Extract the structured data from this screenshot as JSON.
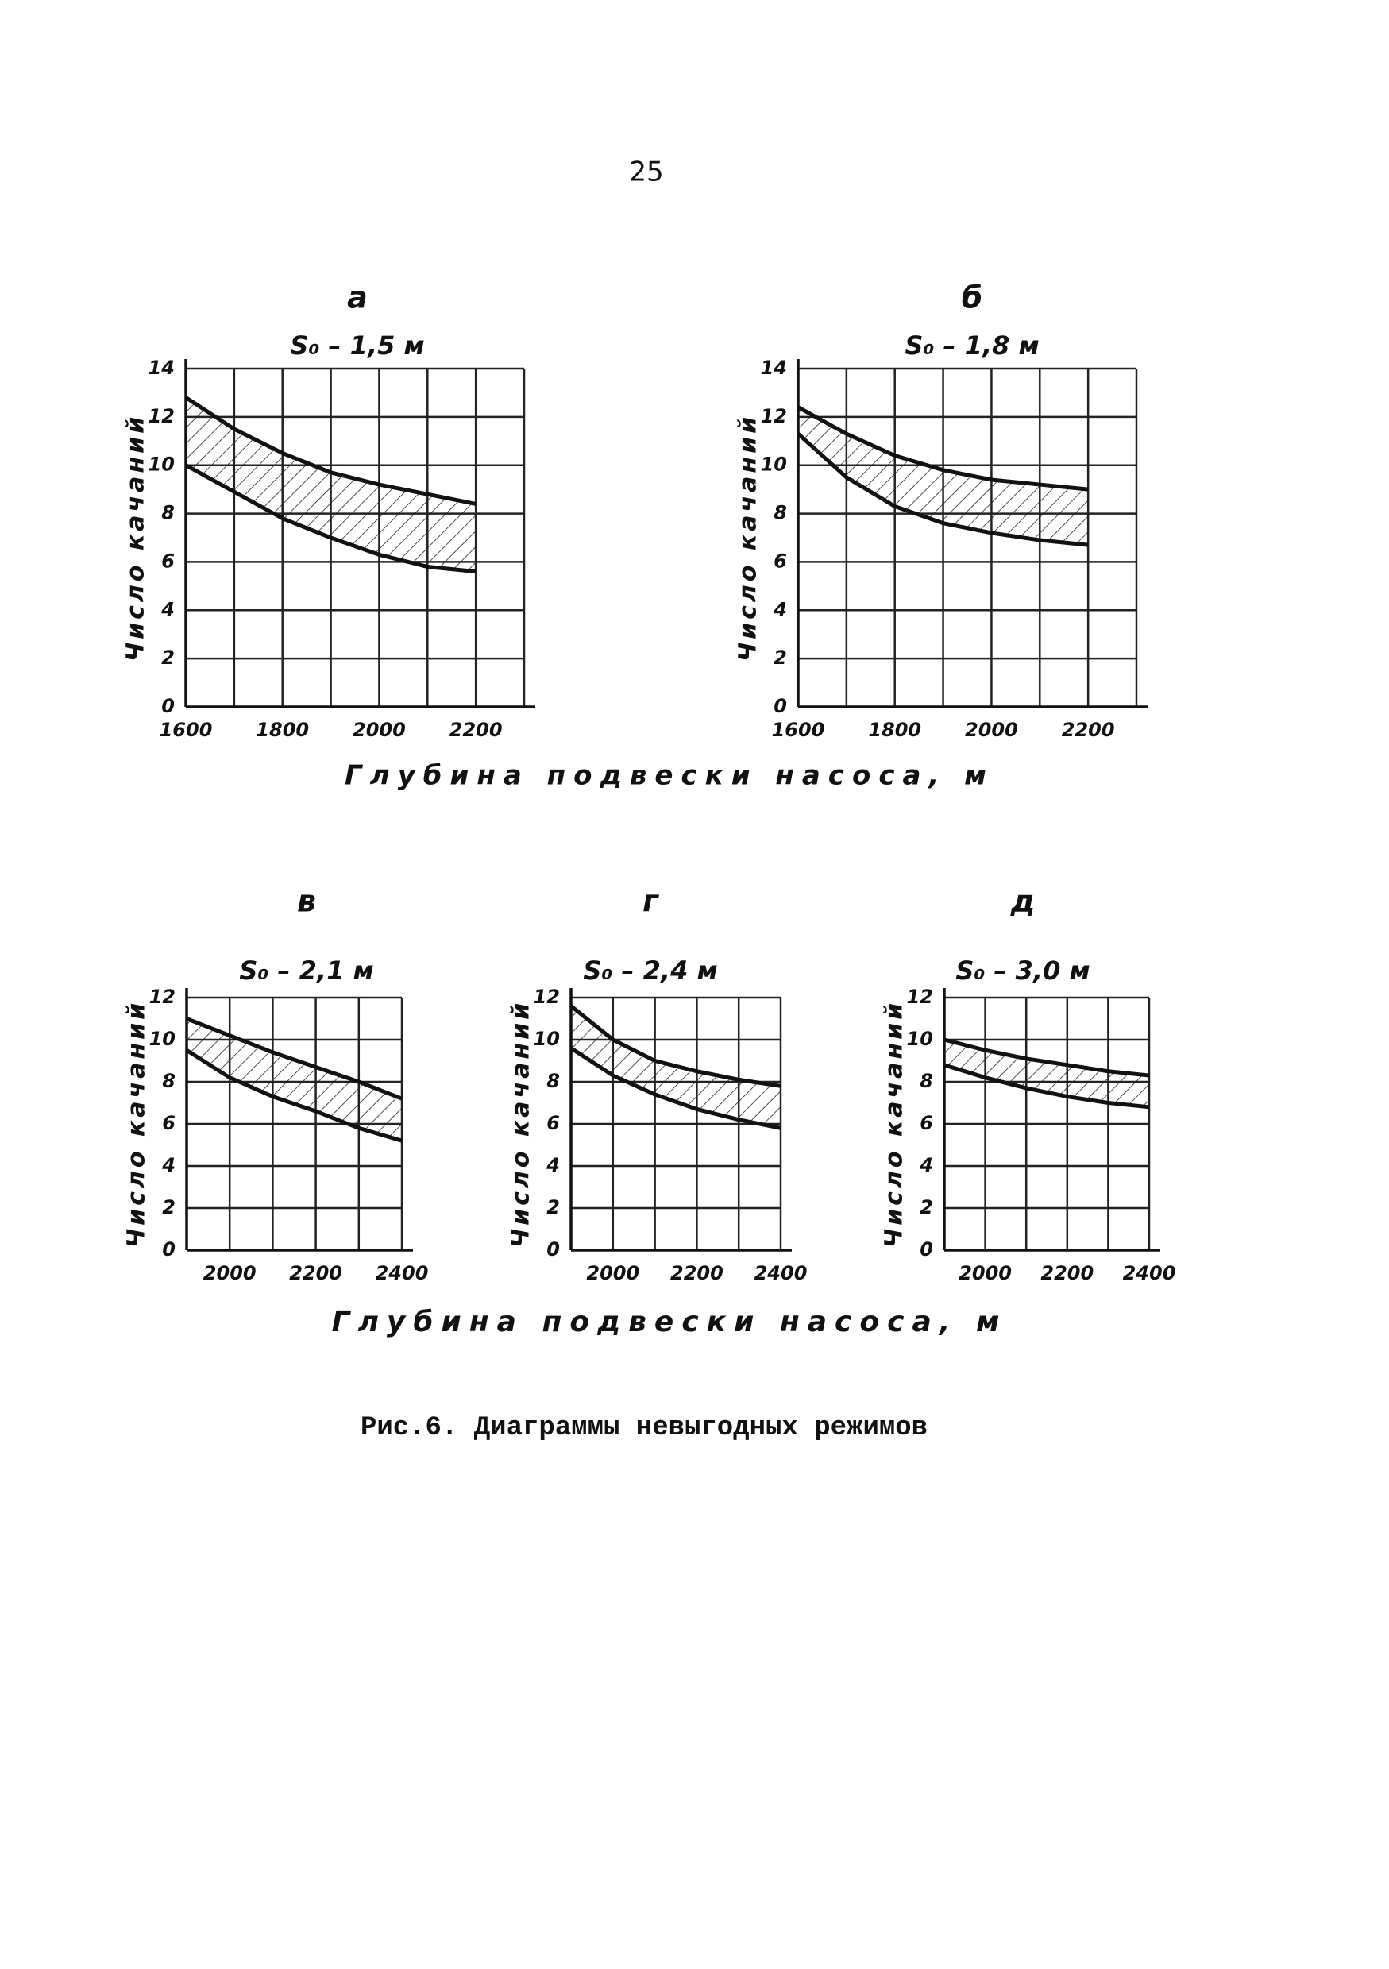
{
  "page_number": "25",
  "row_labels": [
    "Глубина подвески насоса, м",
    "Глубина подвески насоса, м"
  ],
  "caption": "Рис.6. Диаграммы невыгодных режимов",
  "chart_data": [
    {
      "type": "band",
      "label": "а",
      "title": "S₀ – 1,5 м",
      "ylabel": "Число качаний",
      "x": [
        1600,
        1700,
        1800,
        1900,
        2000,
        2100,
        2200
      ],
      "series": [
        {
          "values": [
            12.8,
            11.5,
            10.5,
            9.7,
            9.2,
            8.8,
            8.4
          ],
          "color": "#111"
        },
        {
          "values": [
            10,
            8.9,
            7.8,
            7.0,
            6.3,
            5.8,
            5.6
          ],
          "color": "#111"
        }
      ],
      "xlim": [
        1600,
        2300
      ],
      "xticks": [
        1600,
        1800,
        2000,
        2200
      ],
      "x_minor_ticks": [
        1700,
        1900,
        2100,
        2300
      ],
      "ylim": [
        0,
        14
      ],
      "yticks": [
        0,
        2,
        4,
        6,
        8,
        10,
        12,
        14
      ],
      "grid": true
    },
    {
      "type": "band",
      "label": "б",
      "title": "S₀ – 1,8 м",
      "ylabel": "Число качаний",
      "x": [
        1600,
        1700,
        1800,
        1900,
        2000,
        2100,
        2200
      ],
      "series": [
        {
          "values": [
            12.4,
            11.3,
            10.4,
            9.8,
            9.4,
            9.2,
            9.0
          ],
          "color": "#111"
        },
        {
          "values": [
            11.3,
            9.5,
            8.3,
            7.6,
            7.2,
            6.9,
            6.7
          ],
          "color": "#111"
        }
      ],
      "xlim": [
        1600,
        2300
      ],
      "xticks": [
        1600,
        1800,
        2000,
        2200
      ],
      "x_minor_ticks": [
        1700,
        1900,
        2100,
        2300
      ],
      "ylim": [
        0,
        14
      ],
      "yticks": [
        0,
        2,
        4,
        6,
        8,
        10,
        12,
        14
      ],
      "grid": true
    },
    {
      "type": "band",
      "label": "в",
      "title": "S₀ – 2,1 м",
      "ylabel": "Число качаний",
      "x": [
        1900,
        2000,
        2100,
        2200,
        2300,
        2400
      ],
      "series": [
        {
          "values": [
            11,
            10.2,
            9.4,
            8.7,
            8.0,
            7.2
          ],
          "color": "#111"
        },
        {
          "values": [
            9.5,
            8.2,
            7.3,
            6.6,
            5.8,
            5.2
          ],
          "color": "#111"
        }
      ],
      "xlim": [
        1900,
        2400
      ],
      "xticks": [
        2000,
        2200,
        2400
      ],
      "x_minor_ticks": [
        1900,
        2100,
        2300
      ],
      "ylim": [
        0,
        12
      ],
      "yticks": [
        0,
        2,
        4,
        6,
        8,
        10,
        12
      ],
      "grid": true
    },
    {
      "type": "band",
      "label": "г",
      "title": "S₀ – 2,4 м",
      "ylabel": "Число качаний",
      "x": [
        1900,
        2000,
        2100,
        2200,
        2300,
        2400
      ],
      "series": [
        {
          "values": [
            11.6,
            10.0,
            9.0,
            8.5,
            8.1,
            7.8
          ],
          "color": "#111"
        },
        {
          "values": [
            9.6,
            8.3,
            7.4,
            6.7,
            6.2,
            5.8
          ],
          "color": "#111"
        }
      ],
      "xlim": [
        1900,
        2400
      ],
      "xticks": [
        2000,
        2200,
        2400
      ],
      "x_minor_ticks": [
        1900,
        2100,
        2300
      ],
      "ylim": [
        0,
        12
      ],
      "yticks": [
        0,
        2,
        4,
        6,
        8,
        10,
        12
      ],
      "grid": true
    },
    {
      "type": "band",
      "label": "д",
      "title": "S₀ – 3,0 м",
      "ylabel": "Число качаний",
      "x": [
        1900,
        2000,
        2100,
        2200,
        2300,
        2400
      ],
      "series": [
        {
          "values": [
            10.0,
            9.5,
            9.1,
            8.8,
            8.5,
            8.3
          ],
          "color": "#111"
        },
        {
          "values": [
            8.8,
            8.2,
            7.7,
            7.3,
            7.0,
            6.8
          ],
          "color": "#111"
        }
      ],
      "xlim": [
        1900,
        2400
      ],
      "xticks": [
        2000,
        2200,
        2400
      ],
      "x_minor_ticks": [
        1900,
        2100,
        2300
      ],
      "ylim": [
        0,
        12
      ],
      "yticks": [
        0,
        2,
        4,
        6,
        8,
        10,
        12
      ],
      "grid": true
    }
  ]
}
